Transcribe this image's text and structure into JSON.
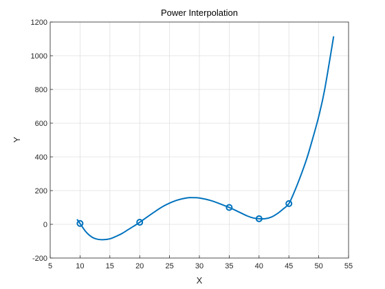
{
  "chart_data": {
    "type": "line",
    "title": "Power Interpolation",
    "xlabel": "X",
    "ylabel": "Y",
    "xlim": [
      5,
      55
    ],
    "ylim": [
      -200,
      1200
    ],
    "xticks": [
      "5",
      "10",
      "15",
      "20",
      "25",
      "30",
      "35",
      "40",
      "45",
      "50",
      "55"
    ],
    "yticks": [
      "-200",
      "0",
      "200",
      "400",
      "600",
      "800",
      "1000",
      "1200"
    ],
    "grid": true,
    "colors": {
      "line": "#0072BD"
    },
    "series": [
      {
        "kind": "markers",
        "marker": "circle",
        "x": [
          10,
          20,
          35,
          40,
          45
        ],
        "y": [
          5,
          12,
          100,
          33,
          123
        ]
      },
      {
        "kind": "line",
        "x": [
          9.5,
          10,
          11,
          12,
          13,
          14,
          15,
          16,
          17,
          18,
          19,
          20,
          22,
          24,
          26,
          28,
          29,
          30,
          32,
          34,
          35,
          36,
          38,
          39,
          40,
          41,
          42,
          43,
          44,
          45,
          46,
          47,
          48,
          49,
          50,
          51,
          52.5
        ],
        "y": [
          30,
          5,
          -45,
          -76,
          -89,
          -91,
          -86,
          -72,
          -55,
          -33,
          -11,
          12,
          62,
          108,
          140,
          157,
          158,
          156,
          140,
          114,
          100,
          84,
          50,
          38,
          33,
          33,
          42,
          62,
          90,
          123,
          200,
          290,
          390,
          510,
          640,
          800,
          1115
        ]
      }
    ]
  }
}
